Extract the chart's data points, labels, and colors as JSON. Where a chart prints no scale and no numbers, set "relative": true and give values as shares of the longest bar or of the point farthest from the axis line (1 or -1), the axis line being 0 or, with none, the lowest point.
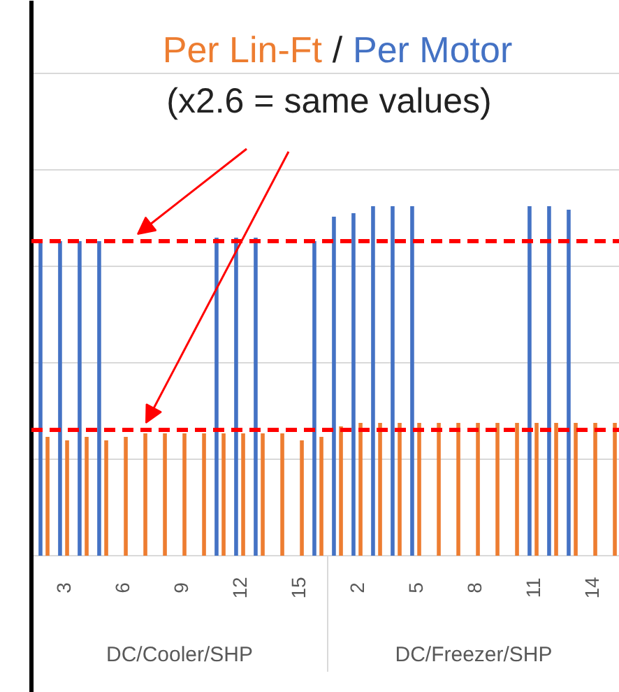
{
  "chart_data": {
    "type": "bar",
    "relative": true,
    "categories": [
      null,
      "3",
      null,
      null,
      "6",
      null,
      null,
      "9",
      null,
      null,
      "12",
      null,
      null,
      "15",
      null,
      null,
      "2",
      null,
      null,
      "5",
      null,
      null,
      "8",
      null,
      null,
      "11",
      null,
      null,
      "14",
      null
    ],
    "series": [
      {
        "name": "Per Lin-Ft",
        "color": "#ed7d31",
        "values": [
          0.34,
          0.33,
          0.34,
          0.33,
          0.34,
          0.35,
          0.35,
          0.35,
          0.35,
          0.35,
          0.35,
          0.35,
          0.35,
          0.33,
          0.34,
          0.37,
          0.38,
          0.38,
          0.38,
          0.38,
          0.38,
          0.38,
          0.38,
          0.38,
          0.38,
          0.38,
          0.38,
          0.38,
          0.38,
          0.38
        ]
      },
      {
        "name": "Per Motor",
        "color": "#4472c4",
        "values": [
          0.9,
          0.9,
          0.9,
          0.9,
          null,
          null,
          null,
          null,
          null,
          0.91,
          0.91,
          0.91,
          null,
          null,
          0.9,
          0.97,
          0.98,
          1.0,
          1.0,
          1.0,
          null,
          null,
          null,
          null,
          null,
          1.0,
          1.0,
          0.99,
          null,
          null
        ]
      }
    ],
    "annotations": [
      "/",
      "(x2.6 = same values)",
      "DC/Cooler/SHP",
      "DC/Freezer/SHP"
    ],
    "ref_lines": [
      {
        "axis": "y",
        "value": 0.9,
        "label": null,
        "color": "#ff0000",
        "line_style": "dashed"
      },
      {
        "axis": "y",
        "value": 0.36,
        "label": null,
        "color": "#ff0000",
        "line_style": "dashed"
      }
    ],
    "grid": "y",
    "legend": false
  }
}
